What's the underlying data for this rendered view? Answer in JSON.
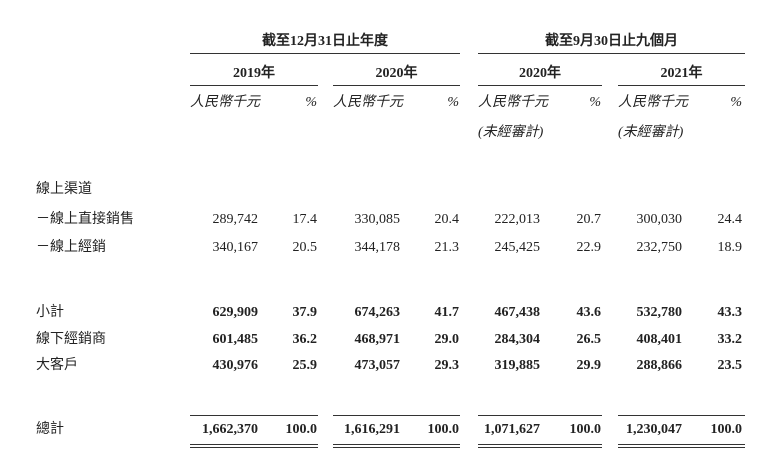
{
  "header": {
    "periods": [
      {
        "title": "截至12月31日止年度",
        "columns": [
          {
            "year": "2019年",
            "unit": "人民幣千元",
            "pct": "%"
          },
          {
            "year": "2020年",
            "unit": "人民幣千元",
            "pct": "%"
          }
        ]
      },
      {
        "title": "截至9月30日止九個月",
        "columns": [
          {
            "year": "2020年",
            "unit": "人民幣千元",
            "pct": "%",
            "note": "(未經審計)"
          },
          {
            "year": "2021年",
            "unit": "人民幣千元",
            "pct": "%",
            "note": "(未經審計)"
          }
        ]
      }
    ]
  },
  "table": {
    "rows": [
      {
        "label": "線上渠道",
        "cells": []
      },
      {
        "label": "－線上直接銷售",
        "cells": [
          "289,742",
          "17.4",
          "330,085",
          "20.4",
          "222,013",
          "20.7",
          "300,030",
          "24.4"
        ]
      },
      {
        "label": "－線上經銷",
        "cells": [
          "340,167",
          "20.5",
          "344,178",
          "21.3",
          "245,425",
          "22.9",
          "232,750",
          "18.9"
        ]
      },
      {
        "label": "小計",
        "bold": true,
        "cells": [
          "629,909",
          "37.9",
          "674,263",
          "41.7",
          "467,438",
          "43.6",
          "532,780",
          "43.3"
        ]
      },
      {
        "label": "線下經銷商",
        "bold": true,
        "cells": [
          "601,485",
          "36.2",
          "468,971",
          "29.0",
          "284,304",
          "26.5",
          "408,401",
          "33.2"
        ]
      },
      {
        "label": "大客戶",
        "bold": true,
        "cells": [
          "430,976",
          "25.9",
          "473,057",
          "29.3",
          "319,885",
          "29.9",
          "288,866",
          "23.5"
        ]
      },
      {
        "label": "總計",
        "bold": true,
        "total": true,
        "cells": [
          "1,662,370",
          "100.0",
          "1,616,291",
          "100.0",
          "1,071,627",
          "100.0",
          "1,230,047",
          "100.0"
        ]
      }
    ]
  }
}
